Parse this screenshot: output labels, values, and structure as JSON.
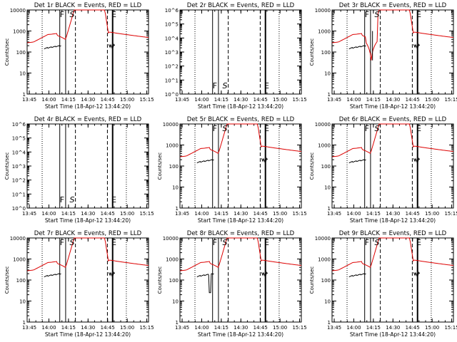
{
  "chart_data": [
    {
      "type": "line",
      "title": "Det 1r BLACK = Events, RED = LLD",
      "xlabel": "Start Time (18-Apr-12 13:44:20)",
      "ylabel": "Counts/sec",
      "ylog": true,
      "ylim": [
        1,
        10000
      ],
      "yticks": [
        "1",
        "10",
        "100",
        "1000",
        "10000"
      ],
      "xticks": [
        "13:45",
        "14:00",
        "14:15",
        "14:30",
        "14:45",
        "15:00",
        "15:15"
      ],
      "markers": [
        "F",
        "S",
        "E"
      ],
      "has_data": true,
      "variant": 0
    },
    {
      "type": "line",
      "title": "Det 2r BLACK = Events, RED = LLD",
      "xlabel": "Start Time (18-Apr-12 13:44:20)",
      "ylabel": "",
      "ylog": true,
      "ylim": [
        1,
        1000000
      ],
      "yticks": [
        "10^0",
        "10^1",
        "10^2",
        "10^3",
        "10^4",
        "10^5",
        "10^6"
      ],
      "xticks": [
        "13:45",
        "14:00",
        "14:15",
        "14:30",
        "14:45",
        "15:00",
        "15:15"
      ],
      "markers": [
        "F",
        "S",
        "E"
      ],
      "has_data": false,
      "variant": 0
    },
    {
      "type": "line",
      "title": "Det 3r BLACK = Events, RED = LLD",
      "xlabel": "Start Time (18-Apr-12 13:44:20)",
      "ylabel": "Counts/sec",
      "ylog": true,
      "ylim": [
        1,
        10000
      ],
      "yticks": [
        "1",
        "10",
        "100",
        "1000",
        "10000"
      ],
      "xticks": [
        "13:45",
        "14:00",
        "14:15",
        "14:30",
        "14:45",
        "15:00",
        "15:15"
      ],
      "markers": [
        "F",
        "S",
        "E"
      ],
      "has_data": true,
      "variant": 1
    },
    {
      "type": "line",
      "title": "Det 4r BLACK = Events, RED = LLD",
      "xlabel": "Start Time (18-Apr-12 13:44:20)",
      "ylabel": "Counts/sec",
      "ylog": true,
      "ylim": [
        1,
        1000000
      ],
      "yticks": [
        "10^0",
        "10^1",
        "10^2",
        "10^3",
        "10^4",
        "10^5",
        "10^6"
      ],
      "xticks": [
        "13:45",
        "14:00",
        "14:15",
        "14:30",
        "14:45",
        "15:00",
        "15:15"
      ],
      "markers": [
        "F",
        "S",
        "E"
      ],
      "has_data": false,
      "variant": 0
    },
    {
      "type": "line",
      "title": "Det 5r BLACK = Events, RED = LLD",
      "xlabel": "Start Time (18-Apr-12 13:44:20)",
      "ylabel": "Counts/sec",
      "ylog": true,
      "ylim": [
        1,
        10000
      ],
      "yticks": [
        "1",
        "10",
        "100",
        "1000",
        "10000"
      ],
      "xticks": [
        "13:45",
        "14:00",
        "14:15",
        "14:30",
        "14:45",
        "15:00",
        "15:15"
      ],
      "markers": [
        "F",
        "S",
        "E"
      ],
      "has_data": true,
      "variant": 0
    },
    {
      "type": "line",
      "title": "Det 6r BLACK = Events, RED = LLD",
      "xlabel": "Start Time (18-Apr-12 13:44:20)",
      "ylabel": "Counts/sec",
      "ylog": true,
      "ylim": [
        1,
        10000
      ],
      "yticks": [
        "1",
        "10",
        "100",
        "1000",
        "10000"
      ],
      "xticks": [
        "13:45",
        "14:00",
        "14:15",
        "14:30",
        "14:45",
        "15:00",
        "15:15"
      ],
      "markers": [
        "F",
        "S",
        "E"
      ],
      "has_data": true,
      "variant": 0
    },
    {
      "type": "line",
      "title": "Det 7r BLACK = Events, RED = LLD",
      "xlabel": "Start Time (18-Apr-12 13:44:20)",
      "ylabel": "Counts/sec",
      "ylog": true,
      "ylim": [
        1,
        10000
      ],
      "yticks": [
        "1",
        "10",
        "100",
        "1000",
        "10000"
      ],
      "xticks": [
        "13:45",
        "14:00",
        "14:15",
        "14:30",
        "14:45",
        "15:00",
        "15:15"
      ],
      "markers": [
        "F",
        "S",
        "E"
      ],
      "has_data": true,
      "variant": 0
    },
    {
      "type": "line",
      "title": "Det 8r BLACK = Events, RED = LLD",
      "xlabel": "Start Time (18-Apr-12 13:44:20)",
      "ylabel": "Counts/sec",
      "ylog": true,
      "ylim": [
        1,
        10000
      ],
      "yticks": [
        "1",
        "10",
        "100",
        "1000",
        "10000"
      ],
      "xticks": [
        "13:45",
        "14:00",
        "14:15",
        "14:30",
        "14:45",
        "15:00",
        "15:15"
      ],
      "markers": [
        "F",
        "S",
        "E"
      ],
      "has_data": true,
      "variant": 2
    },
    {
      "type": "line",
      "title": "Det 9r BLACK = Events, RED = LLD",
      "xlabel": "Start Time (18-Apr-12 13:44:20)",
      "ylabel": "Counts/sec",
      "ylog": true,
      "ylim": [
        1,
        10000
      ],
      "yticks": [
        "1",
        "10",
        "100",
        "1000",
        "10000"
      ],
      "xticks": [
        "13:45",
        "14:00",
        "14:15",
        "14:30",
        "14:45",
        "15:00",
        "15:15"
      ],
      "markers": [
        "F",
        "S",
        "E"
      ],
      "has_data": true,
      "variant": 0
    }
  ],
  "colors": {
    "events": "#000000",
    "lld": "#dd0000",
    "background": "#ffffff",
    "axes": "#000000"
  }
}
